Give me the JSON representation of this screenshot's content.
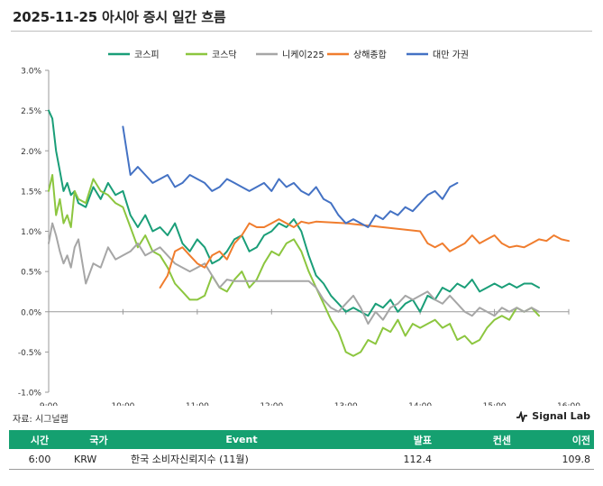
{
  "title": "2025-11-25 아시아 증시 일간 흐름",
  "source": "자료: 시그널랩",
  "brand": "Signal Lab",
  "chart_data": {
    "type": "line",
    "title": "2025-11-25 아시아 증시 일간 흐름",
    "ylim": [
      -1.0,
      3.0
    ],
    "y_ticks": [
      "3.0%",
      "2.5%",
      "2.0%",
      "1.5%",
      "1.0%",
      "0.5%",
      "0.0%",
      "-0.5%",
      "-1.0%"
    ],
    "y_tick_values": [
      3.0,
      2.5,
      2.0,
      1.5,
      1.0,
      0.5,
      0.0,
      -0.5,
      -1.0
    ],
    "x_ticks": [
      "9:00",
      "10:00",
      "11:00",
      "12:00",
      "13:00",
      "14:00",
      "15:00",
      "16:00"
    ],
    "x_tick_values": [
      9,
      10,
      11,
      12,
      13,
      14,
      15,
      16
    ],
    "xlim": [
      9,
      16
    ],
    "grid": "none",
    "legend_position": "top",
    "series": [
      {
        "name": "코스피",
        "color": "#1a9e78",
        "x": [
          9.0,
          9.05,
          9.1,
          9.15,
          9.2,
          9.25,
          9.3,
          9.35,
          9.4,
          9.5,
          9.6,
          9.7,
          9.8,
          9.9,
          10.0,
          10.1,
          10.2,
          10.3,
          10.4,
          10.5,
          10.6,
          10.7,
          10.8,
          10.9,
          11.0,
          11.1,
          11.2,
          11.3,
          11.4,
          11.5,
          11.6,
          11.7,
          11.8,
          11.9,
          12.0,
          12.1,
          12.2,
          12.3,
          12.4,
          12.5,
          12.6,
          12.7,
          12.8,
          12.9,
          13.0,
          13.1,
          13.2,
          13.3,
          13.4,
          13.5,
          13.6,
          13.7,
          13.8,
          13.9,
          14.0,
          14.1,
          14.2,
          14.3,
          14.4,
          14.5,
          14.6,
          14.7,
          14.8,
          14.9,
          15.0,
          15.1,
          15.2,
          15.3,
          15.4,
          15.5,
          15.6
        ],
        "y": [
          2.5,
          2.4,
          2.0,
          1.75,
          1.5,
          1.6,
          1.45,
          1.5,
          1.35,
          1.3,
          1.55,
          1.4,
          1.6,
          1.45,
          1.5,
          1.2,
          1.05,
          1.2,
          1.0,
          1.05,
          0.95,
          1.1,
          0.85,
          0.75,
          0.9,
          0.8,
          0.6,
          0.65,
          0.75,
          0.9,
          0.95,
          0.75,
          0.8,
          0.95,
          1.0,
          1.1,
          1.05,
          1.15,
          1.0,
          0.7,
          0.45,
          0.35,
          0.2,
          0.1,
          0.0,
          0.05,
          0.0,
          -0.05,
          0.1,
          0.05,
          0.15,
          0.0,
          0.1,
          0.15,
          0.0,
          0.2,
          0.15,
          0.3,
          0.25,
          0.35,
          0.3,
          0.4,
          0.25,
          0.3,
          0.35,
          0.3,
          0.35,
          0.3,
          0.35,
          0.35,
          0.3
        ]
      },
      {
        "name": "코스닥",
        "color": "#8cc63f",
        "x": [
          9.0,
          9.05,
          9.1,
          9.15,
          9.2,
          9.25,
          9.3,
          9.35,
          9.4,
          9.5,
          9.6,
          9.7,
          9.8,
          9.9,
          10.0,
          10.1,
          10.2,
          10.3,
          10.4,
          10.5,
          10.6,
          10.7,
          10.8,
          10.9,
          11.0,
          11.1,
          11.2,
          11.3,
          11.4,
          11.5,
          11.6,
          11.7,
          11.8,
          11.9,
          12.0,
          12.1,
          12.2,
          12.3,
          12.4,
          12.5,
          12.6,
          12.7,
          12.8,
          12.9,
          13.0,
          13.1,
          13.2,
          13.3,
          13.4,
          13.5,
          13.6,
          13.7,
          13.8,
          13.9,
          14.0,
          14.1,
          14.2,
          14.3,
          14.4,
          14.5,
          14.6,
          14.7,
          14.8,
          14.9,
          15.0,
          15.1,
          15.2,
          15.3,
          15.4,
          15.5,
          15.6
        ],
        "y": [
          1.5,
          1.7,
          1.2,
          1.4,
          1.1,
          1.2,
          1.05,
          1.5,
          1.4,
          1.35,
          1.65,
          1.5,
          1.45,
          1.35,
          1.3,
          1.05,
          0.8,
          0.95,
          0.75,
          0.7,
          0.55,
          0.35,
          0.25,
          0.15,
          0.15,
          0.2,
          0.45,
          0.3,
          0.25,
          0.4,
          0.5,
          0.3,
          0.4,
          0.6,
          0.75,
          0.7,
          0.85,
          0.9,
          0.75,
          0.5,
          0.3,
          0.1,
          -0.1,
          -0.25,
          -0.5,
          -0.55,
          -0.5,
          -0.35,
          -0.4,
          -0.2,
          -0.25,
          -0.1,
          -0.3,
          -0.15,
          -0.2,
          -0.15,
          -0.1,
          -0.2,
          -0.15,
          -0.35,
          -0.3,
          -0.4,
          -0.35,
          -0.2,
          -0.1,
          -0.05,
          -0.1,
          0.05,
          0.0,
          0.05,
          -0.05
        ]
      },
      {
        "name": "니케이225",
        "color": "#a6a6a6",
        "x": [
          9.0,
          9.05,
          9.1,
          9.15,
          9.2,
          9.25,
          9.3,
          9.35,
          9.4,
          9.5,
          9.6,
          9.7,
          9.8,
          9.9,
          10.0,
          10.1,
          10.2,
          10.3,
          10.4,
          10.5,
          10.6,
          10.7,
          10.8,
          10.9,
          11.0,
          11.1,
          11.2,
          11.3,
          11.4,
          11.5,
          11.6,
          11.7,
          11.8,
          11.9,
          12.0,
          12.1,
          12.2,
          12.3,
          12.4,
          12.5,
          12.6,
          12.7,
          12.8,
          12.9,
          13.0,
          13.1,
          13.2,
          13.3,
          13.4,
          13.5,
          13.6,
          13.7,
          13.8,
          13.9,
          14.0,
          14.1,
          14.2,
          14.3,
          14.4,
          14.5,
          14.6,
          14.7,
          14.8,
          14.9,
          15.0,
          15.1,
          15.2,
          15.3,
          15.4,
          15.5,
          15.6
        ],
        "y": [
          0.85,
          1.1,
          0.95,
          0.75,
          0.6,
          0.7,
          0.55,
          0.8,
          0.9,
          0.35,
          0.6,
          0.55,
          0.8,
          0.65,
          0.7,
          0.75,
          0.85,
          0.7,
          0.75,
          0.8,
          0.7,
          0.6,
          0.55,
          0.5,
          0.55,
          0.6,
          0.45,
          0.3,
          0.4,
          0.38,
          0.38,
          0.38,
          0.38,
          0.38,
          0.38,
          0.38,
          0.38,
          0.38,
          0.38,
          0.38,
          0.3,
          0.15,
          0.05,
          0.0,
          0.1,
          0.2,
          0.05,
          -0.15,
          0.0,
          -0.1,
          0.05,
          0.1,
          0.2,
          0.15,
          0.2,
          0.25,
          0.15,
          0.1,
          0.2,
          0.1,
          0.0,
          -0.05,
          0.05,
          0.0,
          -0.05,
          0.05,
          0.0,
          0.05,
          0.0,
          0.05,
          0.0
        ]
      },
      {
        "name": "상해종합",
        "color": "#f07d2e",
        "x": [
          10.5,
          10.6,
          10.7,
          10.8,
          10.9,
          11.0,
          11.1,
          11.2,
          11.3,
          11.4,
          11.5,
          11.6,
          11.7,
          11.8,
          11.9,
          12.0,
          12.1,
          12.2,
          12.3,
          12.4,
          12.5,
          12.6,
          13.0,
          13.5,
          14.0,
          14.1,
          14.2,
          14.3,
          14.4,
          14.5,
          14.6,
          14.7,
          14.8,
          14.9,
          15.0,
          15.1,
          15.2,
          15.3,
          15.4,
          15.5,
          15.6,
          15.7,
          15.8,
          15.9,
          16.0
        ],
        "y": [
          0.3,
          0.45,
          0.75,
          0.8,
          0.7,
          0.6,
          0.55,
          0.7,
          0.75,
          0.65,
          0.85,
          0.95,
          1.1,
          1.05,
          1.05,
          1.1,
          1.15,
          1.1,
          1.05,
          1.12,
          1.1,
          1.12,
          1.1,
          1.05,
          1.0,
          0.85,
          0.8,
          0.85,
          0.75,
          0.8,
          0.85,
          0.95,
          0.85,
          0.9,
          0.95,
          0.85,
          0.8,
          0.82,
          0.8,
          0.85,
          0.9,
          0.88,
          0.95,
          0.9,
          0.88
        ]
      },
      {
        "name": "대만 가권",
        "color": "#4472c4",
        "x": [
          10.0,
          10.1,
          10.2,
          10.3,
          10.4,
          10.5,
          10.6,
          10.7,
          10.8,
          10.9,
          11.0,
          11.1,
          11.2,
          11.3,
          11.4,
          11.5,
          11.6,
          11.7,
          11.8,
          11.9,
          12.0,
          12.1,
          12.2,
          12.3,
          12.4,
          12.5,
          12.6,
          12.7,
          12.8,
          12.9,
          13.0,
          13.1,
          13.2,
          13.3,
          13.4,
          13.5,
          13.6,
          13.7,
          13.8,
          13.9,
          14.0,
          14.1,
          14.2,
          14.3,
          14.4,
          14.5
        ],
        "y": [
          2.3,
          1.7,
          1.8,
          1.7,
          1.6,
          1.65,
          1.7,
          1.55,
          1.6,
          1.7,
          1.65,
          1.6,
          1.5,
          1.55,
          1.65,
          1.6,
          1.55,
          1.5,
          1.55,
          1.6,
          1.5,
          1.65,
          1.55,
          1.6,
          1.5,
          1.45,
          1.55,
          1.4,
          1.35,
          1.2,
          1.1,
          1.15,
          1.1,
          1.05,
          1.2,
          1.15,
          1.25,
          1.2,
          1.3,
          1.25,
          1.35,
          1.45,
          1.5,
          1.4,
          1.55,
          1.6
        ]
      }
    ]
  },
  "table": {
    "headers": {
      "time": "시간",
      "country": "국가",
      "event": "Event",
      "actual": "발표",
      "consensus": "컨센",
      "previous": "이전"
    },
    "rows": [
      {
        "time": "6:00",
        "country": "KRW",
        "event": "한국 소비자신뢰지수 (11월)",
        "actual": "112.4",
        "consensus": "",
        "previous": "109.8"
      }
    ]
  }
}
